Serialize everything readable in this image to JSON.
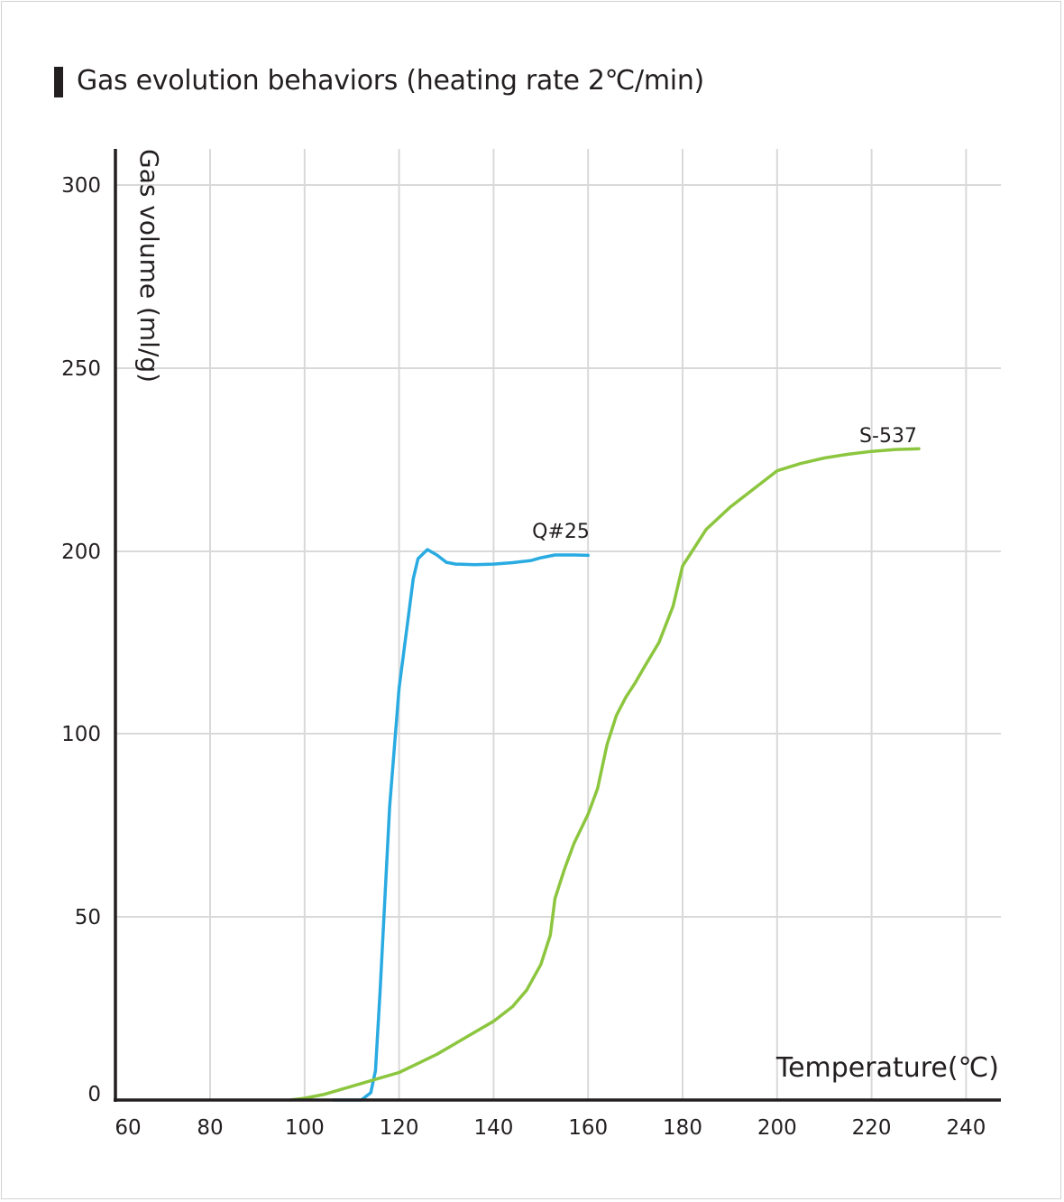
{
  "chart_data": {
    "type": "line",
    "title": "Gas evolution behaviors (heating rate 2℃/min)",
    "xlabel": "Temperature(℃)",
    "ylabel": "Gas volume (ml/g)",
    "x_ticks": [
      60,
      80,
      100,
      120,
      140,
      160,
      180,
      200,
      220,
      240
    ],
    "y_ticks": [
      0,
      50,
      100,
      200,
      250,
      300
    ],
    "grid": true,
    "series": [
      {
        "name": "Q#25",
        "color": "#29abe2",
        "points": [
          [
            106,
            0
          ],
          [
            112,
            0
          ],
          [
            114,
            2
          ],
          [
            115,
            8
          ],
          [
            116,
            30
          ],
          [
            118,
            80
          ],
          [
            120,
            125
          ],
          [
            122,
            165
          ],
          [
            123,
            185
          ],
          [
            124,
            196
          ],
          [
            126,
            200.5
          ],
          [
            128,
            198
          ],
          [
            130,
            194
          ],
          [
            132,
            193
          ],
          [
            136,
            192.7
          ],
          [
            140,
            193
          ],
          [
            144,
            193.8
          ],
          [
            148,
            195
          ],
          [
            150,
            196.5
          ],
          [
            153,
            198
          ],
          [
            157,
            198
          ],
          [
            160,
            197.8
          ]
        ]
      },
      {
        "name": "S-537",
        "color": "#8cc63f",
        "points": [
          [
            97,
            0
          ],
          [
            100,
            0.5
          ],
          [
            104,
            1.5
          ],
          [
            108,
            3
          ],
          [
            112,
            4.5
          ],
          [
            116,
            6
          ],
          [
            120,
            7.5
          ],
          [
            124,
            10
          ],
          [
            128,
            12.5
          ],
          [
            132,
            15.5
          ],
          [
            136,
            18.5
          ],
          [
            140,
            21.5
          ],
          [
            144,
            25.5
          ],
          [
            147,
            30
          ],
          [
            150,
            37
          ],
          [
            152,
            45
          ],
          [
            153,
            55
          ],
          [
            155,
            63
          ],
          [
            157,
            70
          ],
          [
            160,
            78
          ],
          [
            162,
            85
          ],
          [
            164,
            97
          ],
          [
            166,
            110
          ],
          [
            168,
            120
          ],
          [
            170,
            128
          ],
          [
            172,
            137
          ],
          [
            175,
            150
          ],
          [
            178,
            170
          ],
          [
            180,
            192
          ],
          [
            182,
            200
          ],
          [
            185,
            206
          ],
          [
            190,
            212
          ],
          [
            195,
            217
          ],
          [
            200,
            222
          ],
          [
            205,
            224
          ],
          [
            210,
            225.5
          ],
          [
            215,
            226.5
          ],
          [
            220,
            227.3
          ],
          [
            225,
            227.8
          ],
          [
            230,
            228
          ]
        ]
      }
    ]
  }
}
